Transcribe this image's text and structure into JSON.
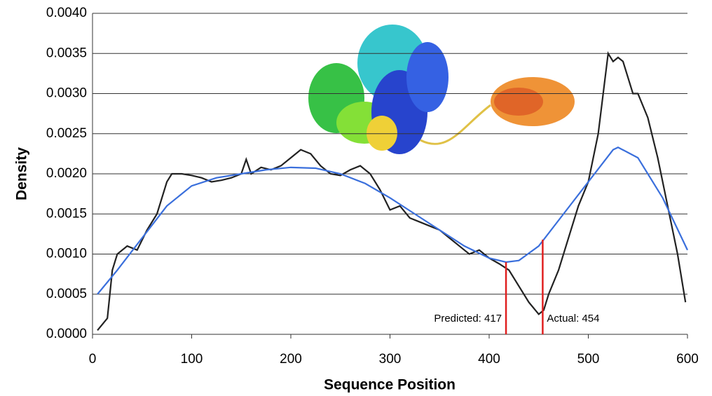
{
  "chart_data": {
    "type": "line",
    "x_label": "Sequence Position",
    "y_label": "Density",
    "xlim": [
      0,
      600
    ],
    "xticks": [
      0,
      100,
      200,
      300,
      400,
      500,
      600
    ],
    "ylim": [
      0,
      0.004
    ],
    "yticks": [
      {
        "value": 0,
        "label": "0.0000"
      },
      {
        "value": 0.0005,
        "label": "0.0005"
      },
      {
        "value": 0.001,
        "label": "0.0010"
      },
      {
        "value": 0.0015,
        "label": "0.0015"
      },
      {
        "value": 0.002,
        "label": "0.0020"
      },
      {
        "value": 0.0025,
        "label": "0.0025"
      },
      {
        "value": 0.003,
        "label": "0.0030"
      },
      {
        "value": 0.0035,
        "label": "0.0035"
      },
      {
        "value": 0.004,
        "label": "0.0040"
      }
    ],
    "grid": true,
    "series": [
      {
        "color": "#222222",
        "x": [
          5,
          15,
          20,
          25,
          35,
          45,
          55,
          65,
          75,
          80,
          90,
          100,
          110,
          120,
          130,
          140,
          150,
          155,
          160,
          170,
          180,
          190,
          200,
          210,
          220,
          230,
          240,
          250,
          260,
          270,
          280,
          290,
          300,
          310,
          320,
          330,
          340,
          350,
          360,
          370,
          380,
          390,
          400,
          410,
          420,
          430,
          440,
          450,
          455,
          460,
          470,
          480,
          490,
          500,
          510,
          515,
          520,
          525,
          530,
          535,
          540,
          545,
          550,
          560,
          570,
          580,
          590,
          598
        ],
        "values": [
          5e-05,
          0.0002,
          0.0008,
          0.001,
          0.0011,
          0.00105,
          0.0013,
          0.0015,
          0.0019,
          0.002,
          0.002,
          0.00198,
          0.00195,
          0.0019,
          0.00192,
          0.00195,
          0.002,
          0.00218,
          0.002,
          0.00208,
          0.00205,
          0.0021,
          0.0022,
          0.0023,
          0.00225,
          0.0021,
          0.002,
          0.00198,
          0.00205,
          0.0021,
          0.002,
          0.0018,
          0.00155,
          0.0016,
          0.00145,
          0.0014,
          0.00135,
          0.0013,
          0.0012,
          0.0011,
          0.001,
          0.00105,
          0.00095,
          0.00088,
          0.0008,
          0.0006,
          0.0004,
          0.00025,
          0.0003,
          0.0005,
          0.0008,
          0.0012,
          0.0016,
          0.0019,
          0.0025,
          0.003,
          0.0035,
          0.0034,
          0.00345,
          0.0034,
          0.0032,
          0.003,
          0.003,
          0.0027,
          0.0022,
          0.0016,
          0.001,
          0.0004
        ]
      },
      {
        "color": "#3a6fdc",
        "x": [
          5,
          25,
          50,
          75,
          100,
          125,
          150,
          175,
          200,
          225,
          250,
          275,
          300,
          325,
          350,
          375,
          400,
          417,
          430,
          450,
          475,
          500,
          525,
          530,
          550,
          575,
          600
        ],
        "values": [
          0.0005,
          0.0008,
          0.0012,
          0.0016,
          0.00185,
          0.00195,
          0.002,
          0.00205,
          0.00208,
          0.00207,
          0.002,
          0.00188,
          0.0017,
          0.0015,
          0.0013,
          0.0011,
          0.00095,
          0.0009,
          0.00092,
          0.0011,
          0.0015,
          0.0019,
          0.0023,
          0.00233,
          0.0022,
          0.0017,
          0.00105
        ]
      }
    ],
    "annotations": [
      {
        "text": "Predicted: 417",
        "x": 417,
        "y": 0.0009,
        "color": "#e02020"
      },
      {
        "text": "Actual: 454",
        "x": 454,
        "y": 0.00118,
        "color": "#e02020"
      }
    ]
  }
}
